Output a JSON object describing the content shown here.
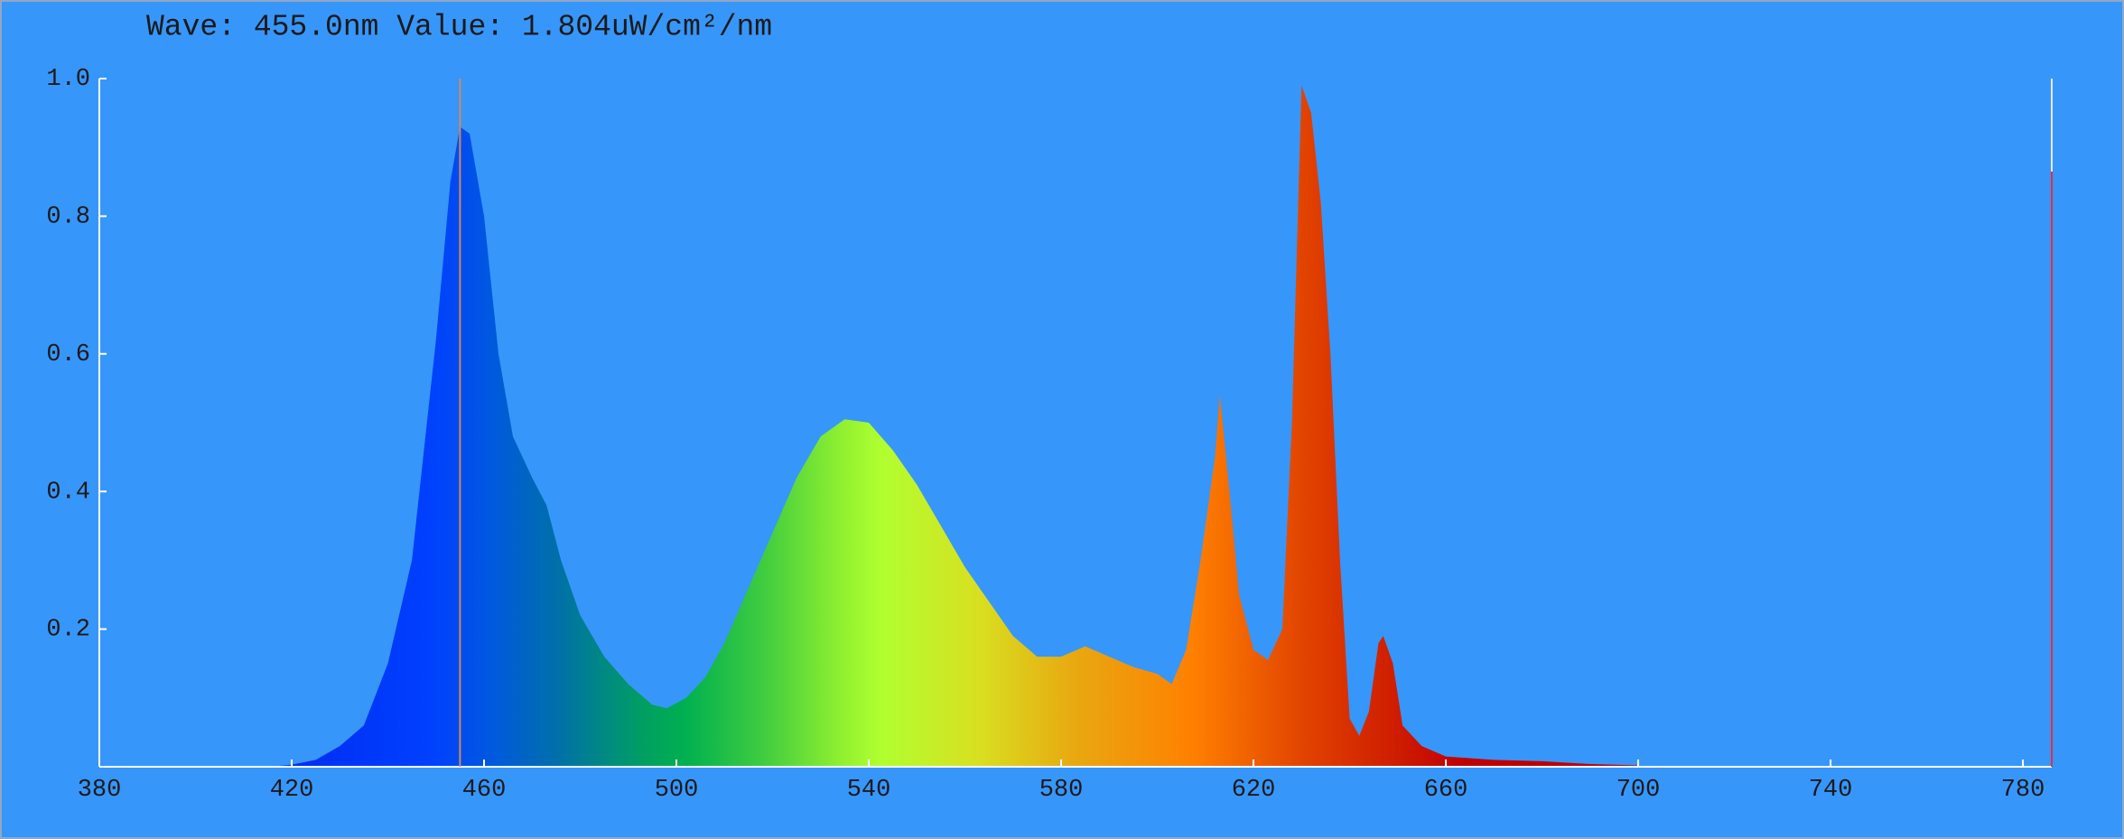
{
  "chart_data": {
    "type": "area",
    "annotation": "Wave: 455.0nm Value: 1.804uW/cm²/nm",
    "cursor_x": 455,
    "cursor_color": "#d08a5a",
    "x": [
      415,
      420,
      425,
      430,
      435,
      440,
      445,
      450,
      453,
      455,
      457,
      460,
      463,
      466,
      470,
      473,
      476,
      480,
      485,
      490,
      495,
      498,
      502,
      506,
      510,
      515,
      520,
      525,
      530,
      535,
      540,
      545,
      550,
      555,
      560,
      565,
      570,
      575,
      580,
      585,
      590,
      595,
      600,
      603,
      606,
      609,
      612,
      613,
      615,
      617,
      620,
      623,
      626,
      628,
      630,
      632,
      634,
      636,
      638,
      640,
      642,
      644,
      646,
      647,
      649,
      651,
      655,
      660,
      670,
      680,
      690,
      700
    ],
    "values": [
      0,
      0.003,
      0.01,
      0.03,
      0.06,
      0.15,
      0.3,
      0.62,
      0.85,
      0.93,
      0.92,
      0.8,
      0.6,
      0.48,
      0.42,
      0.38,
      0.3,
      0.22,
      0.16,
      0.12,
      0.09,
      0.085,
      0.1,
      0.13,
      0.18,
      0.26,
      0.34,
      0.42,
      0.48,
      0.505,
      0.5,
      0.46,
      0.41,
      0.35,
      0.29,
      0.24,
      0.19,
      0.16,
      0.16,
      0.175,
      0.16,
      0.145,
      0.135,
      0.12,
      0.17,
      0.3,
      0.45,
      0.54,
      0.4,
      0.25,
      0.17,
      0.155,
      0.2,
      0.5,
      0.99,
      0.95,
      0.82,
      0.6,
      0.3,
      0.07,
      0.045,
      0.08,
      0.18,
      0.19,
      0.15,
      0.06,
      0.03,
      0.015,
      0.01,
      0.008,
      0.004,
      0.002
    ],
    "xlim": [
      380,
      786
    ],
    "xticks": [
      380,
      420,
      460,
      500,
      540,
      580,
      620,
      660,
      700,
      740,
      780
    ],
    "ylim": [
      0,
      1
    ],
    "yticks": [
      0.2,
      0.4,
      0.6,
      0.8,
      {
        "value": 1,
        "label": "1.0"
      }
    ]
  }
}
